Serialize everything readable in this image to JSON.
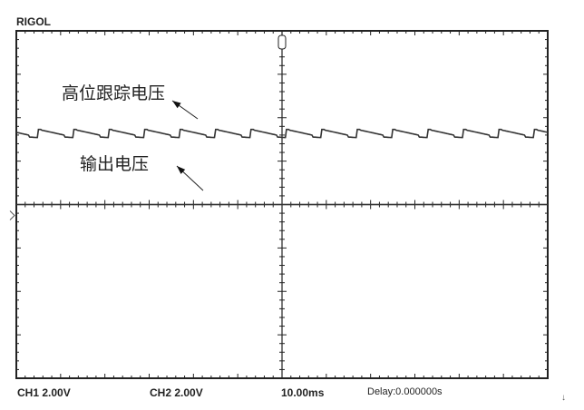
{
  "brand": "RIGOL",
  "footer": {
    "ch1": "CH1  2.00V",
    "ch2": "CH2  2.00V",
    "timebase": "10.00ms",
    "delay": "Delay:0.000000s"
  },
  "annotations": {
    "high": "高位跟踪电压",
    "out": "输出电压"
  },
  "chart_data": {
    "type": "line",
    "xlabel": "",
    "ylabel": "",
    "x_unit": "ms",
    "y_unit": "V",
    "xlim": [
      -60,
      60
    ],
    "ylim": [
      -7.5,
      8.5
    ],
    "x_divisions": 12,
    "y_divisions": 8,
    "grid": "dotted ticks on center axes",
    "series": [
      {
        "name": "高位跟踪电压",
        "shape": "sawtooth ripple",
        "mean": 3.6,
        "ripple": 0.3,
        "period": 8
      },
      {
        "name": "输出电压",
        "shape": "flat",
        "value": 0.5
      }
    ],
    "colors": {
      "trace": "#333333",
      "frame": "#222222"
    }
  }
}
